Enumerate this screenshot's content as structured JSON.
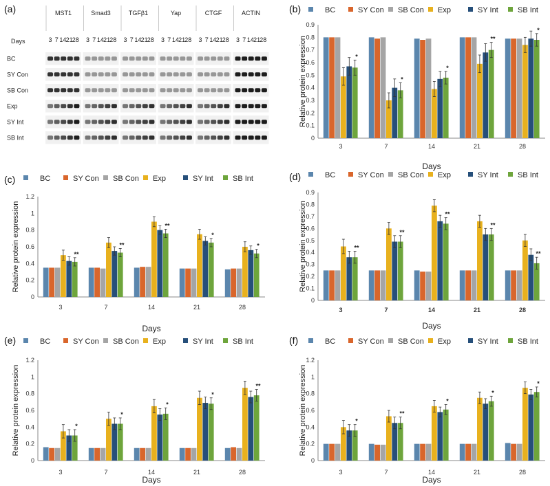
{
  "panel_a": {
    "label": "(a)",
    "days_label": "Days",
    "proteins": [
      "MST1",
      "Smad3",
      "TGFβ1",
      "Yap",
      "CTGF",
      "ACTIN"
    ],
    "day_ticks": [
      "3",
      "7",
      "14",
      "21",
      "28"
    ],
    "groups": [
      "BC",
      "SY Con",
      "SB Con",
      "Exp",
      "SY Int",
      "SB Int"
    ]
  },
  "legend": {
    "names": [
      "BC",
      "SY Con",
      "SB Con",
      "Exp",
      "SY Int",
      "SB Int"
    ],
    "colors": [
      "#5b86ad",
      "#d9662c",
      "#a5a5a5",
      "#e8b11e",
      "#264f7a",
      "#6ea53c"
    ]
  },
  "chart_data": [
    {
      "label": "(b)",
      "type": "bar",
      "categories": [
        "3",
        "7",
        "14",
        "21",
        "28"
      ],
      "xlabel": "Days",
      "ylabel": "Relative protein expression",
      "ylim": [
        0,
        0.9
      ],
      "yticks": [
        "0",
        "0.1",
        "0.2",
        "0.3",
        "0.4",
        "0.5",
        "0.6",
        "0.7",
        "0.8",
        "0.9"
      ],
      "series": [
        {
          "name": "BC",
          "values": [
            0.8,
            0.8,
            0.79,
            0.8,
            0.79
          ],
          "errors": [
            0.0,
            0.0,
            0.0,
            0.0,
            0.0
          ]
        },
        {
          "name": "SY Con",
          "values": [
            0.8,
            0.79,
            0.78,
            0.8,
            0.79
          ],
          "errors": [
            0.0,
            0.0,
            0.0,
            0.0,
            0.0
          ]
        },
        {
          "name": "SB Con",
          "values": [
            0.8,
            0.8,
            0.79,
            0.8,
            0.79
          ],
          "errors": [
            0.0,
            0.0,
            0.0,
            0.0,
            0.0
          ]
        },
        {
          "name": "Exp",
          "values": [
            0.49,
            0.3,
            0.39,
            0.59,
            0.74
          ],
          "errors": [
            0.07,
            0.06,
            0.06,
            0.07,
            0.06
          ]
        },
        {
          "name": "SY Int",
          "values": [
            0.57,
            0.4,
            0.47,
            0.68,
            0.79
          ],
          "errors": [
            0.07,
            0.07,
            0.06,
            0.07,
            0.06
          ]
        },
        {
          "name": "SB Int",
          "values": [
            0.56,
            0.38,
            0.48,
            0.7,
            0.78
          ],
          "errors": [
            0.06,
            0.06,
            0.05,
            0.06,
            0.05
          ]
        }
      ],
      "annotations": [
        "*",
        "*",
        "*",
        "**",
        "*"
      ]
    },
    {
      "label": "(c)",
      "type": "bar",
      "categories": [
        "3",
        "7",
        "14",
        "21",
        "28"
      ],
      "xlabel": "Days",
      "ylabel": "Relative protein expression",
      "ylim": [
        0,
        1.2
      ],
      "yticks": [
        "0",
        "0.2",
        "0.4",
        "0.6",
        "0.8",
        "1",
        "1.2"
      ],
      "series": [
        {
          "name": "BC",
          "values": [
            0.35,
            0.35,
            0.35,
            0.34,
            0.33
          ],
          "errors": [
            0.0,
            0.0,
            0.0,
            0.0,
            0.0
          ]
        },
        {
          "name": "SY Con",
          "values": [
            0.35,
            0.35,
            0.36,
            0.34,
            0.34
          ],
          "errors": [
            0.0,
            0.0,
            0.0,
            0.0,
            0.0
          ]
        },
        {
          "name": "SB Con",
          "values": [
            0.35,
            0.34,
            0.36,
            0.34,
            0.34
          ],
          "errors": [
            0.0,
            0.0,
            0.0,
            0.0,
            0.0
          ]
        },
        {
          "name": "Exp",
          "values": [
            0.5,
            0.65,
            0.9,
            0.75,
            0.6
          ],
          "errors": [
            0.06,
            0.06,
            0.06,
            0.06,
            0.06
          ]
        },
        {
          "name": "SY Int",
          "values": [
            0.43,
            0.55,
            0.8,
            0.67,
            0.56
          ],
          "errors": [
            0.05,
            0.05,
            0.05,
            0.05,
            0.05
          ]
        },
        {
          "name": "SB Int",
          "values": [
            0.42,
            0.53,
            0.76,
            0.65,
            0.52
          ],
          "errors": [
            0.05,
            0.05,
            0.05,
            0.05,
            0.05
          ]
        }
      ],
      "annotations": [
        "**",
        "**",
        "**",
        "*",
        "*"
      ]
    },
    {
      "label": "(d)",
      "type": "bar",
      "categories": [
        "3",
        "7",
        "14",
        "21",
        "28"
      ],
      "xlabel": "Days",
      "ylabel": "Relative protein expression",
      "ylim": [
        0,
        0.9
      ],
      "yticks": [
        "0",
        "0.1",
        "0.2",
        "0.3",
        "0.4",
        "0.5",
        "0.6",
        "0.7",
        "0.8",
        "0.9"
      ],
      "series": [
        {
          "name": "BC",
          "values": [
            0.25,
            0.25,
            0.25,
            0.25,
            0.25
          ],
          "errors": [
            0.0,
            0.0,
            0.0,
            0.0,
            0.0
          ]
        },
        {
          "name": "SY Con",
          "values": [
            0.25,
            0.25,
            0.24,
            0.25,
            0.25
          ],
          "errors": [
            0.0,
            0.0,
            0.0,
            0.0,
            0.0
          ]
        },
        {
          "name": "SB Con",
          "values": [
            0.25,
            0.25,
            0.24,
            0.25,
            0.25
          ],
          "errors": [
            0.0,
            0.0,
            0.0,
            0.0,
            0.0
          ]
        },
        {
          "name": "Exp",
          "values": [
            0.45,
            0.6,
            0.79,
            0.66,
            0.5
          ],
          "errors": [
            0.06,
            0.05,
            0.05,
            0.05,
            0.05
          ]
        },
        {
          "name": "SY Int",
          "values": [
            0.36,
            0.49,
            0.66,
            0.55,
            0.38
          ],
          "errors": [
            0.05,
            0.05,
            0.05,
            0.05,
            0.05
          ]
        },
        {
          "name": "SB Int",
          "values": [
            0.36,
            0.49,
            0.64,
            0.55,
            0.31
          ],
          "errors": [
            0.05,
            0.05,
            0.05,
            0.05,
            0.05
          ]
        }
      ],
      "annotations": [
        "**",
        "**",
        "**",
        "**",
        "**"
      ]
    },
    {
      "label": "(e)",
      "type": "bar",
      "categories": [
        "3",
        "7",
        "14",
        "21",
        "28"
      ],
      "xlabel": "Days",
      "ylabel": "Relative protein expression",
      "ylim": [
        0,
        1.2
      ],
      "yticks": [
        "0",
        "0.2",
        "0.4",
        "0.6",
        "0.8",
        "1",
        "1.2"
      ],
      "series": [
        {
          "name": "BC",
          "values": [
            0.16,
            0.15,
            0.15,
            0.15,
            0.15
          ],
          "errors": [
            0.0,
            0.0,
            0.0,
            0.0,
            0.0
          ]
        },
        {
          "name": "SY Con",
          "values": [
            0.15,
            0.15,
            0.15,
            0.15,
            0.16
          ],
          "errors": [
            0.0,
            0.0,
            0.0,
            0.0,
            0.0
          ]
        },
        {
          "name": "SB Con",
          "values": [
            0.15,
            0.15,
            0.15,
            0.15,
            0.15
          ],
          "errors": [
            0.0,
            0.0,
            0.0,
            0.0,
            0.0
          ]
        },
        {
          "name": "Exp",
          "values": [
            0.35,
            0.5,
            0.65,
            0.75,
            0.87
          ],
          "errors": [
            0.08,
            0.08,
            0.08,
            0.08,
            0.08
          ]
        },
        {
          "name": "SY Int",
          "values": [
            0.3,
            0.44,
            0.55,
            0.69,
            0.76
          ],
          "errors": [
            0.07,
            0.07,
            0.07,
            0.07,
            0.07
          ]
        },
        {
          "name": "SB Int",
          "values": [
            0.3,
            0.44,
            0.56,
            0.68,
            0.78
          ],
          "errors": [
            0.07,
            0.07,
            0.07,
            0.07,
            0.07
          ]
        }
      ],
      "annotations": [
        "*",
        "*",
        "*",
        "*",
        "**"
      ]
    },
    {
      "label": "(f)",
      "type": "bar",
      "categories": [
        "3",
        "7",
        "14",
        "21",
        "28"
      ],
      "xlabel": "Days",
      "ylabel": "Relative protein expression",
      "ylim": [
        0,
        1.2
      ],
      "yticks": [
        "0",
        "0.2",
        "0.4",
        "0.6",
        "0.8",
        "1",
        "1.2"
      ],
      "series": [
        {
          "name": "BC",
          "values": [
            0.2,
            0.2,
            0.2,
            0.2,
            0.21
          ],
          "errors": [
            0.0,
            0.0,
            0.0,
            0.0,
            0.0
          ]
        },
        {
          "name": "SY Con",
          "values": [
            0.2,
            0.19,
            0.2,
            0.2,
            0.2
          ],
          "errors": [
            0.0,
            0.0,
            0.0,
            0.0,
            0.0
          ]
        },
        {
          "name": "SB Con",
          "values": [
            0.2,
            0.19,
            0.2,
            0.2,
            0.2
          ],
          "errors": [
            0.0,
            0.0,
            0.0,
            0.0,
            0.0
          ]
        },
        {
          "name": "Exp",
          "values": [
            0.4,
            0.53,
            0.65,
            0.75,
            0.87
          ],
          "errors": [
            0.08,
            0.07,
            0.07,
            0.07,
            0.07
          ]
        },
        {
          "name": "SY Int",
          "values": [
            0.36,
            0.45,
            0.58,
            0.68,
            0.79
          ],
          "errors": [
            0.07,
            0.07,
            0.06,
            0.06,
            0.06
          ]
        },
        {
          "name": "SB Int",
          "values": [
            0.36,
            0.45,
            0.61,
            0.71,
            0.82
          ],
          "errors": [
            0.07,
            0.07,
            0.06,
            0.06,
            0.06
          ]
        }
      ],
      "annotations": [
        "*",
        "**",
        "*",
        "*",
        "*"
      ]
    }
  ]
}
